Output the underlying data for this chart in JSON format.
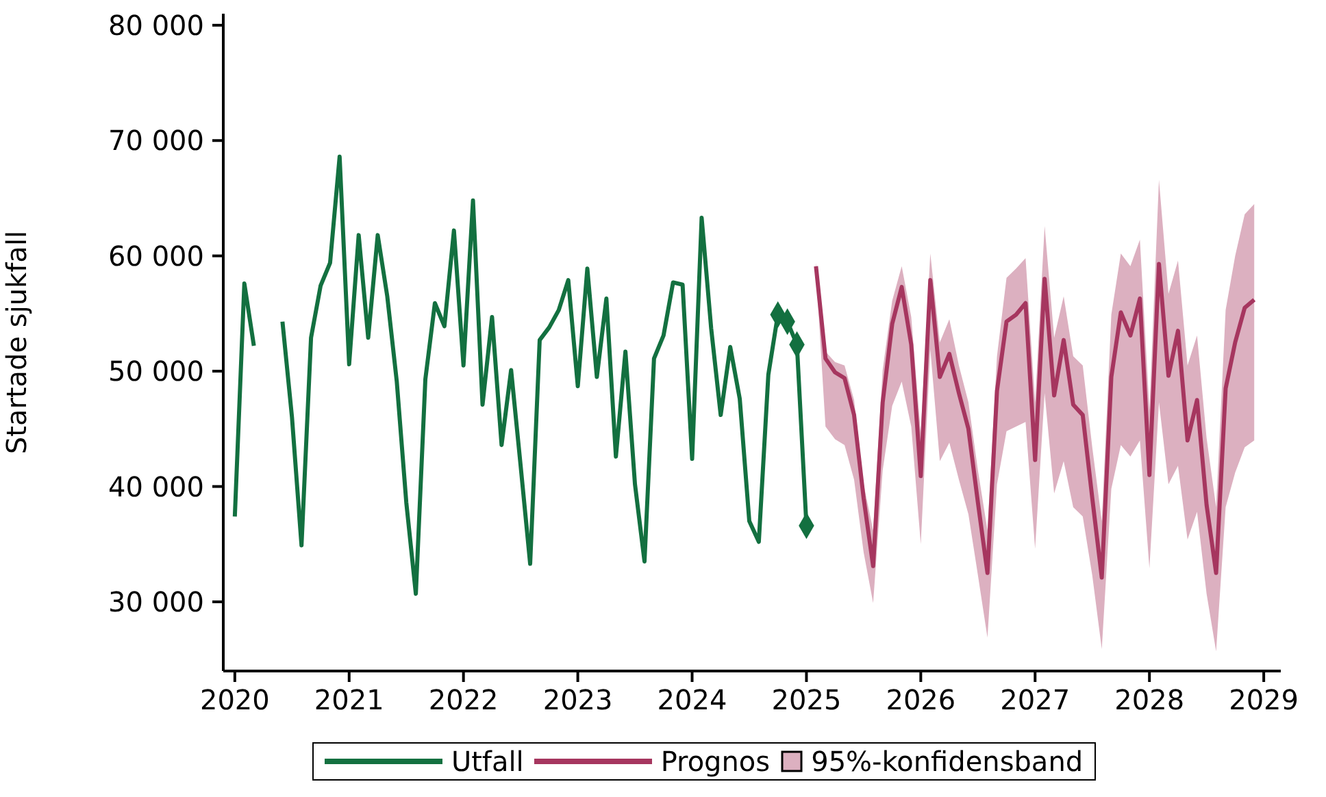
{
  "chart_data": {
    "type": "line",
    "ylabel": "Startade sjukfall",
    "xlim": [
      "2019-11-25",
      "2029-02-25"
    ],
    "xticks": [
      {
        "value": "2020",
        "label": "2020"
      },
      {
        "value": "2021",
        "label": "2021"
      },
      {
        "value": "2022",
        "label": "2022"
      },
      {
        "value": "2023",
        "label": "2023"
      },
      {
        "value": "2024",
        "label": "2024"
      },
      {
        "value": "2025",
        "label": "2025"
      },
      {
        "value": "2026",
        "label": "2026"
      },
      {
        "value": "2027",
        "label": "2027"
      },
      {
        "value": "2028",
        "label": "2028"
      },
      {
        "value": "2029",
        "label": "2029"
      }
    ],
    "ylim": [
      24000,
      81000
    ],
    "yticks": [
      {
        "value": 30000,
        "label": "30 000"
      },
      {
        "value": 40000,
        "label": "40 000"
      },
      {
        "value": 50000,
        "label": "50 000"
      },
      {
        "value": 60000,
        "label": "60 000"
      },
      {
        "value": 70000,
        "label": "70 000"
      },
      {
        "value": 80000,
        "label": "80 000"
      }
    ],
    "grid": false,
    "legend": "bottom",
    "line_style": "solid",
    "series": [
      {
        "name": "Utfall",
        "color": "#137040",
        "x": [
          "2020-01",
          "2020-02",
          "2020-03",
          "2020-04",
          "2020-05",
          "2020-06",
          "2020-07",
          "2020-08",
          "2020-09",
          "2020-10",
          "2020-11",
          "2020-12",
          "2021-01",
          "2021-02",
          "2021-03",
          "2021-04",
          "2021-05",
          "2021-06",
          "2021-07",
          "2021-08",
          "2021-09",
          "2021-10",
          "2021-11",
          "2021-12",
          "2022-01",
          "2022-02",
          "2022-03",
          "2022-04",
          "2022-05",
          "2022-06",
          "2022-07",
          "2022-08",
          "2022-09",
          "2022-10",
          "2022-11",
          "2022-12",
          "2023-01",
          "2023-02",
          "2023-03",
          "2023-04",
          "2023-05",
          "2023-06",
          "2023-07",
          "2023-08",
          "2023-09",
          "2023-10",
          "2023-11",
          "2023-12",
          "2024-01",
          "2024-02",
          "2024-03",
          "2024-04",
          "2024-05",
          "2024-06",
          "2024-07",
          "2024-08",
          "2024-09",
          "2024-10",
          "2024-11",
          "2024-12",
          "2025-01"
        ],
        "values": [
          37400,
          57600,
          52200,
          null,
          null,
          54300,
          46000,
          34900,
          52900,
          57400,
          59400,
          68600,
          50600,
          61800,
          52900,
          61800,
          56500,
          49100,
          38600,
          30700,
          49300,
          55900,
          53900,
          62200,
          50500,
          64800,
          47100,
          54700,
          43600,
          50100,
          41800,
          33300,
          52700,
          53800,
          55300,
          57900,
          48700,
          58900,
          49500,
          56300,
          42600,
          51700,
          40200,
          33500,
          51100,
          53100,
          57700,
          57500,
          42400,
          63300,
          53700,
          46200,
          52100,
          47600,
          37000,
          35200,
          49700,
          54900,
          54300,
          52300,
          36600
        ]
      },
      {
        "type": "scatter",
        "color": "#137040",
        "marker": "diamond",
        "x": [
          "2024-10",
          "2024-11",
          "2024-12",
          "2025-01"
        ],
        "values": [
          54900,
          54300,
          52300,
          36600
        ]
      },
      {
        "name": "Prognos",
        "color": "#a6365f",
        "x": [
          "2025-02",
          "2025-03",
          "2025-04",
          "2025-05",
          "2025-06",
          "2025-07",
          "2025-08",
          "2025-09",
          "2025-10",
          "2025-11",
          "2025-12",
          "2026-01",
          "2026-02",
          "2026-03",
          "2026-04",
          "2026-05",
          "2026-06",
          "2026-07",
          "2026-08",
          "2026-09",
          "2026-10",
          "2026-11",
          "2026-12",
          "2027-01",
          "2027-02",
          "2027-03",
          "2027-04",
          "2027-05",
          "2027-06",
          "2027-07",
          "2027-08",
          "2027-09",
          "2027-10",
          "2027-11",
          "2027-12",
          "2028-01",
          "2028-02",
          "2028-03",
          "2028-04",
          "2028-05",
          "2028-06",
          "2028-07",
          "2028-08",
          "2028-09",
          "2028-10",
          "2028-11",
          "2028-12"
        ],
        "values": [
          59100,
          51100,
          49900,
          49400,
          46200,
          39000,
          33100,
          47300,
          54100,
          57300,
          52300,
          40900,
          57900,
          49500,
          51500,
          48100,
          45000,
          38600,
          32500,
          48300,
          54300,
          54900,
          55900,
          42300,
          58000,
          47900,
          52700,
          47100,
          46200,
          39000,
          32100,
          49500,
          55100,
          53100,
          56300,
          41000,
          59300,
          49600,
          53500,
          44000,
          47500,
          38400,
          32500,
          48500,
          52500,
          55500,
          56200
        ]
      },
      {
        "name": "95%-konfidensband",
        "type": "area",
        "color": "#dcb0c0",
        "x": [
          "2025-02",
          "2025-03",
          "2025-04",
          "2025-05",
          "2025-06",
          "2025-07",
          "2025-08",
          "2025-09",
          "2025-10",
          "2025-11",
          "2025-12",
          "2026-01",
          "2026-02",
          "2026-03",
          "2026-04",
          "2026-05",
          "2026-06",
          "2026-07",
          "2026-08",
          "2026-09",
          "2026-10",
          "2026-11",
          "2026-12",
          "2027-01",
          "2027-02",
          "2027-03",
          "2027-04",
          "2027-05",
          "2027-06",
          "2027-07",
          "2027-08",
          "2027-09",
          "2027-10",
          "2027-11",
          "2027-12",
          "2028-01",
          "2028-02",
          "2028-03",
          "2028-04",
          "2028-05",
          "2028-06",
          "2028-07",
          "2028-08",
          "2028-09",
          "2028-10",
          "2028-11",
          "2028-12"
        ],
        "values": [
          null,
          null,
          null,
          null,
          null,
          null,
          null,
          null,
          null,
          null,
          null,
          null,
          null,
          null,
          null,
          null,
          null,
          null,
          null,
          null,
          null,
          null,
          null,
          null,
          null,
          null,
          null,
          null,
          null,
          null,
          null,
          null,
          null,
          null,
          null,
          null,
          null,
          null,
          null,
          null,
          null,
          null,
          null,
          null,
          null,
          null,
          null
        ],
        "lower": [
          58700,
          45200,
          44100,
          43600,
          40600,
          34300,
          29900,
          41400,
          47000,
          49100,
          45200,
          35000,
          51900,
          42200,
          43800,
          40600,
          37600,
          32300,
          26900,
          40200,
          44800,
          45200,
          45600,
          34600,
          48100,
          39400,
          42200,
          38200,
          37400,
          32300,
          25900,
          39800,
          43600,
          42600,
          44000,
          32900,
          47300,
          40200,
          41800,
          35400,
          37800,
          30700,
          25700,
          38200,
          41200,
          43400,
          44000
        ],
        "upper": [
          59400,
          51700,
          50800,
          50500,
          47500,
          40200,
          36200,
          50100,
          56100,
          59100,
          54700,
          44600,
          60200,
          52500,
          54500,
          50500,
          47300,
          41400,
          36200,
          51300,
          58100,
          58900,
          59800,
          47300,
          62600,
          52900,
          56500,
          51300,
          50500,
          43400,
          37000,
          54900,
          60200,
          59100,
          61400,
          46600,
          66600,
          56700,
          59600,
          50500,
          53100,
          44200,
          38200,
          55300,
          60000,
          63600,
          64500
        ]
      }
    ]
  }
}
